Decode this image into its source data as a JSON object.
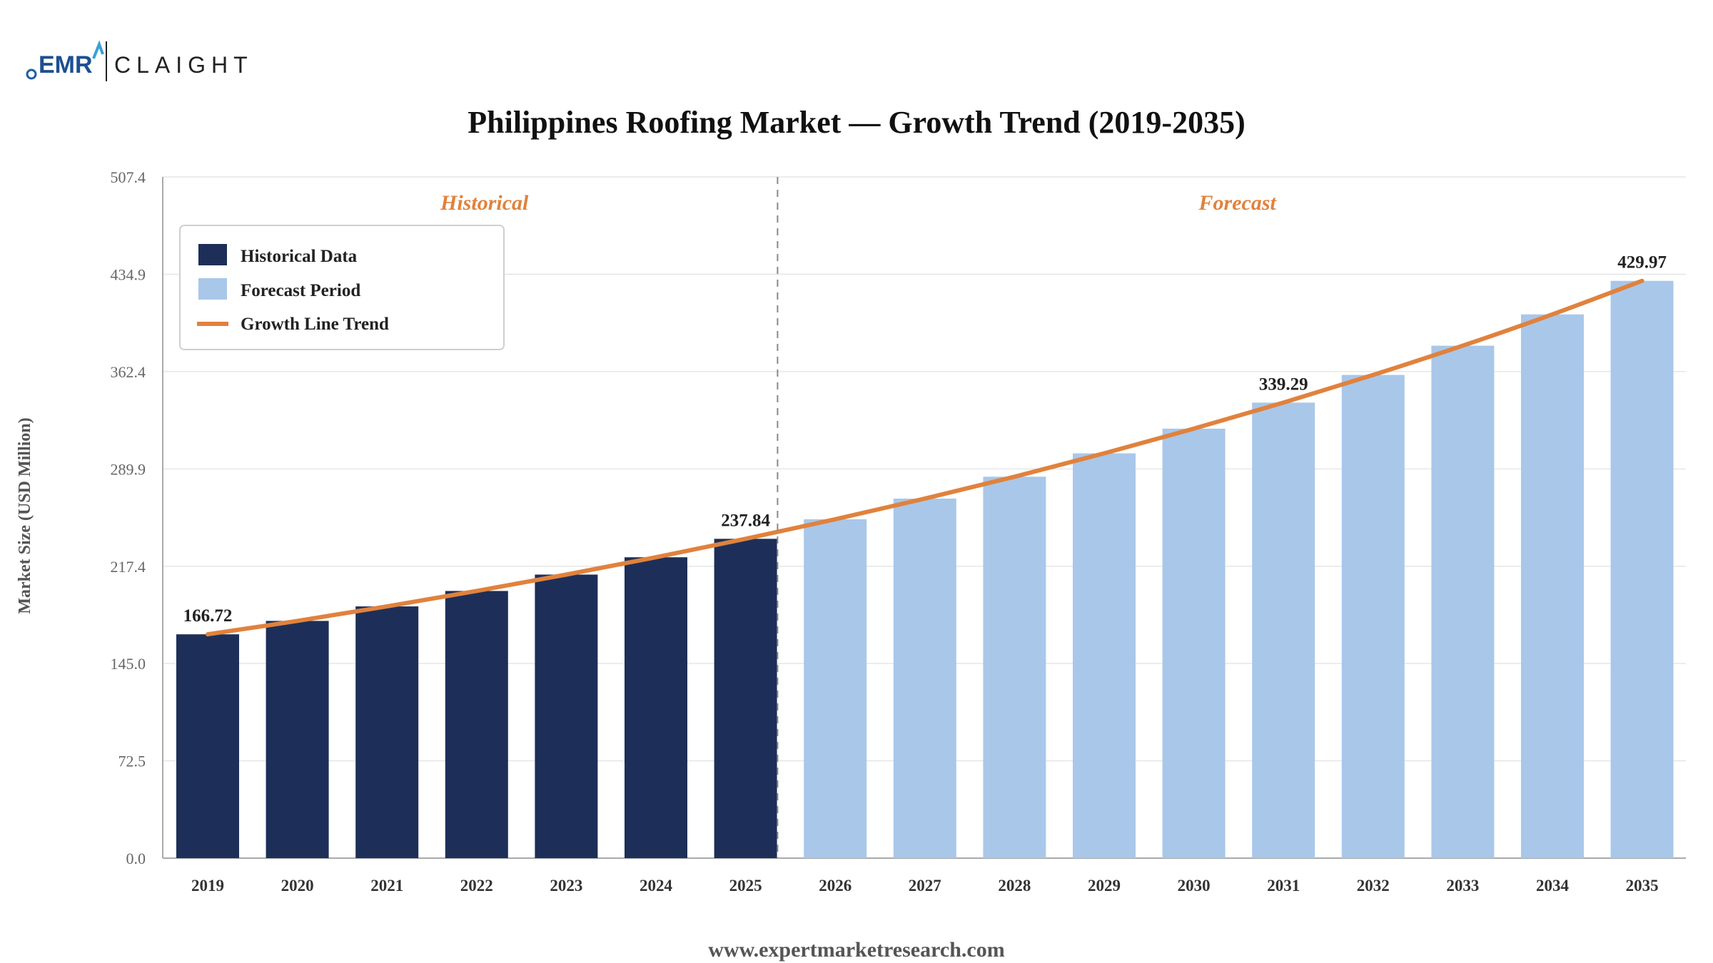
{
  "logo": {
    "left": "EMR",
    "right": "CLAIGHT"
  },
  "footer": "www.expertmarketresearch.com",
  "colors": {
    "historical": "#1d2f58",
    "forecast": "#a9c7e9",
    "trend": "#e0823d",
    "period_label": "#e0823d"
  },
  "chart_data": {
    "type": "bar",
    "title": "Philippines Roofing Market — Growth Trend (2019-2035)",
    "ylabel": "Market Size (USD Million)",
    "xlabel": "",
    "ylim": [
      0,
      507.4
    ],
    "yticks": [
      "0.0",
      "72.5",
      "145.0",
      "217.4",
      "289.9",
      "362.4",
      "434.9",
      "507.4"
    ],
    "grid": true,
    "legend_placement": "top-left",
    "period_labels": {
      "historical": "Historical",
      "forecast": "Forecast"
    },
    "categories": [
      "2019",
      "2020",
      "2021",
      "2022",
      "2023",
      "2024",
      "2025",
      "2026",
      "2027",
      "2028",
      "2029",
      "2030",
      "2031",
      "2032",
      "2033",
      "2034",
      "2035"
    ],
    "series": [
      {
        "name": "Historical Data",
        "type": "bar",
        "values": [
          166.72,
          176.7,
          187.5,
          199.0,
          211.2,
          224.1,
          237.84,
          null,
          null,
          null,
          null,
          null,
          null,
          null,
          null,
          null,
          null
        ]
      },
      {
        "name": "Forecast Period",
        "type": "bar",
        "values": [
          null,
          null,
          null,
          null,
          null,
          null,
          null,
          252.4,
          267.8,
          284.1,
          301.5,
          319.9,
          339.29,
          359.9,
          381.7,
          405.0,
          429.97
        ]
      },
      {
        "name": "Growth Line Trend",
        "type": "line",
        "values": [
          166.72,
          176.7,
          187.5,
          199.0,
          211.2,
          224.1,
          237.84,
          252.4,
          267.8,
          284.1,
          301.5,
          319.9,
          339.29,
          359.9,
          381.7,
          405.0,
          429.97
        ]
      }
    ],
    "data_labels": [
      {
        "category": "2019",
        "text": "166.72"
      },
      {
        "category": "2025",
        "text": "237.84"
      },
      {
        "category": "2031",
        "text": "339.29"
      },
      {
        "category": "2035",
        "text": "429.97"
      }
    ]
  }
}
